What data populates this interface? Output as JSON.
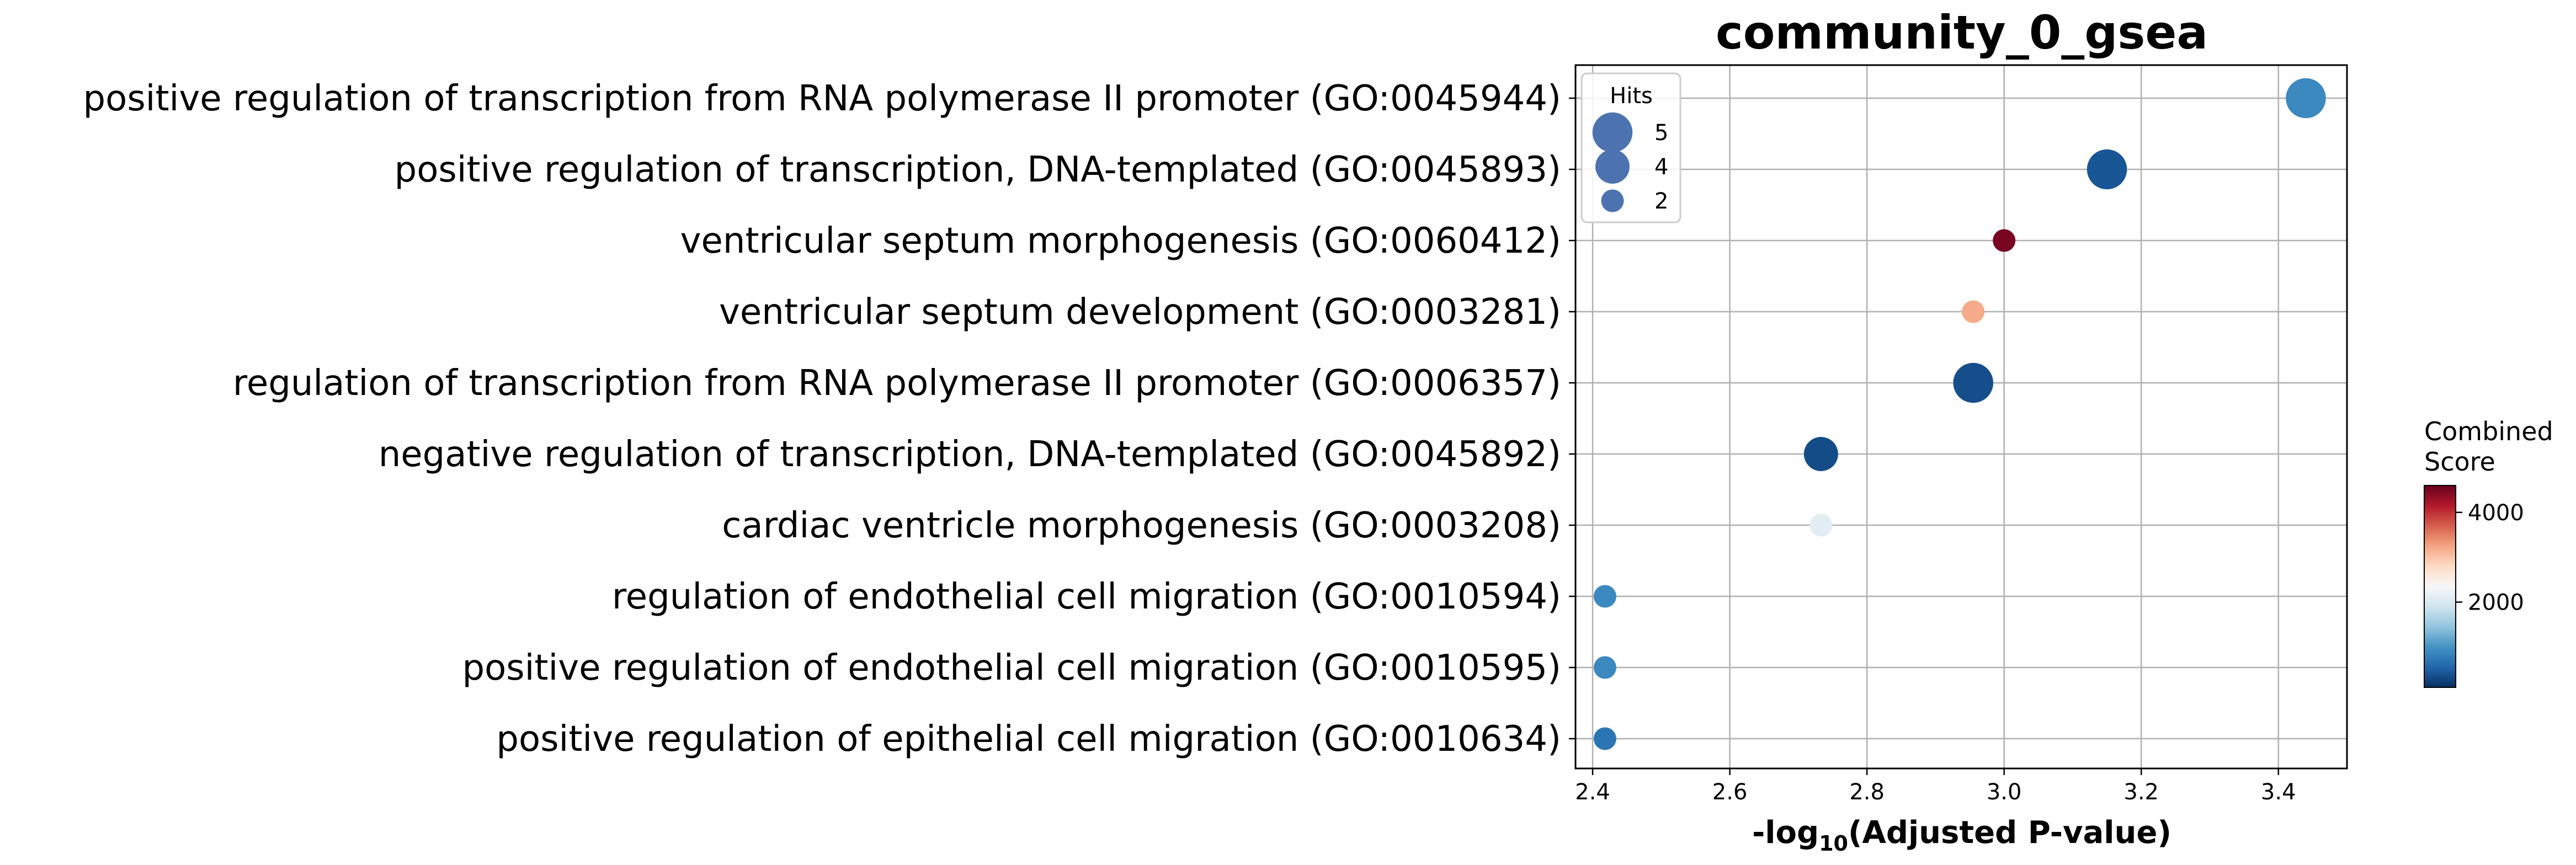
{
  "chart_data": {
    "type": "scatter",
    "title": "community_0_gsea",
    "xlabel_prefix": "-log",
    "xlabel_sub": "10",
    "xlabel_suffix": "(Adjusted P-value)",
    "xlim": [
      2.375,
      3.5
    ],
    "x_ticks": [
      2.4,
      2.6,
      2.8,
      3.0,
      3.2,
      3.4
    ],
    "x_tick_labels": [
      "2.4",
      "2.6",
      "2.8",
      "3.0",
      "3.2",
      "3.4"
    ],
    "grid": true,
    "points": [
      {
        "term": "positive regulation of transcription from RNA polymerase II promoter (GO:0045944)",
        "x": 3.44,
        "hits": 5,
        "score": 900
      },
      {
        "term": "positive regulation of transcription, DNA-templated (GO:0045893)",
        "x": 3.15,
        "hits": 5,
        "score": 420
      },
      {
        "term": "ventricular septum morphogenesis (GO:0060412)",
        "x": 3.0,
        "hits": 2,
        "score": 4500
      },
      {
        "term": "ventricular septum development (GO:0003281)",
        "x": 2.955,
        "hits": 2,
        "score": 3200
      },
      {
        "term": "regulation of transcription from RNA polymerase II promoter (GO:0006357)",
        "x": 2.955,
        "hits": 5,
        "score": 350
      },
      {
        "term": "negative regulation of transcription, DNA-templated (GO:0045892)",
        "x": 2.733,
        "hits": 4,
        "score": 330
      },
      {
        "term": "cardiac ventricle morphogenesis (GO:0003208)",
        "x": 2.733,
        "hits": 2,
        "score": 2100
      },
      {
        "term": "regulation of endothelial cell migration (GO:0010594)",
        "x": 2.418,
        "hits": 2,
        "score": 900
      },
      {
        "term": "positive regulation of endothelial cell migration (GO:0010595)",
        "x": 2.418,
        "hits": 2,
        "score": 900
      },
      {
        "term": "positive regulation of epithelial cell migration (GO:0010634)",
        "x": 2.418,
        "hits": 2,
        "score": 700
      }
    ],
    "size_legend": {
      "title": "Hits",
      "entries": [
        {
          "label": "5",
          "hits": 5
        },
        {
          "label": "4",
          "hits": 4
        },
        {
          "label": "2",
          "hits": 2
        }
      ],
      "color": "#4c72b0"
    },
    "colorbar": {
      "title_line1": "Combined",
      "title_line2": "Score",
      "range": [
        100,
        4600
      ],
      "ticks": [
        2000,
        4000
      ],
      "tick_labels": [
        "2000",
        "4000"
      ],
      "colormap": "RdBu_r",
      "stops": [
        "#053061",
        "#2166ac",
        "#4393c3",
        "#92c5de",
        "#d1e5f0",
        "#f7f7f7",
        "#fddbc7",
        "#f4a582",
        "#d6604d",
        "#b2182b",
        "#67001f"
      ]
    }
  }
}
